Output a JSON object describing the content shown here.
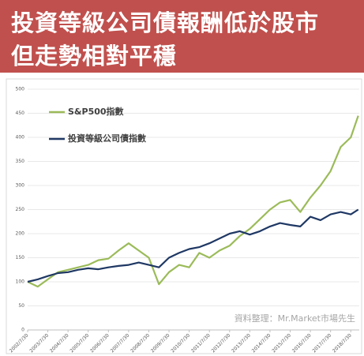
{
  "chart_data": {
    "type": "line",
    "title": [
      "投資等級公司債報酬低於股市",
      "但走勢相對平穩"
    ],
    "annotation": "資料整理：Mr.Market市場先生",
    "x": [
      2002.58,
      2003.08,
      2003.58,
      2004.08,
      2004.58,
      2005.08,
      2005.58,
      2006.08,
      2006.58,
      2007.08,
      2007.58,
      2008.08,
      2008.58,
      2009.08,
      2009.58,
      2010.08,
      2010.58,
      2011.08,
      2011.58,
      2012.08,
      2012.58,
      2013.08,
      2013.58,
      2014.08,
      2014.58,
      2015.08,
      2015.58,
      2016.08,
      2016.58,
      2017.08,
      2017.58,
      2018.08,
      2018.58,
      2018.95
    ],
    "series": [
      {
        "name": "S&P500指數",
        "color": "#9bbb59",
        "values": [
          100,
          90,
          105,
          120,
          125,
          130,
          135,
          145,
          148,
          165,
          180,
          165,
          150,
          95,
          120,
          135,
          130,
          160,
          150,
          165,
          175,
          195,
          210,
          230,
          250,
          265,
          270,
          245,
          275,
          300,
          330,
          380,
          400,
          445
        ]
      },
      {
        "name": "投資等級公司債指數",
        "color": "#1f3864",
        "values": [
          100,
          105,
          112,
          118,
          120,
          125,
          128,
          126,
          130,
          133,
          135,
          140,
          135,
          130,
          150,
          160,
          168,
          172,
          180,
          190,
          200,
          205,
          198,
          205,
          215,
          222,
          218,
          215,
          235,
          228,
          240,
          245,
          240,
          250
        ]
      }
    ],
    "xlim": [
      2002.58,
      2019.0
    ],
    "xticks": [
      {
        "value": 2002.58,
        "label": "2002/7/30"
      },
      {
        "value": 2003.58,
        "label": "2003/7/30"
      },
      {
        "value": 2004.58,
        "label": "2004/7/30"
      },
      {
        "value": 2005.58,
        "label": "2005/7/30"
      },
      {
        "value": 2006.58,
        "label": "2006/7/30"
      },
      {
        "value": 2007.58,
        "label": "2007/7/30"
      },
      {
        "value": 2008.58,
        "label": "2008/7/30"
      },
      {
        "value": 2009.58,
        "label": "2009/7/30"
      },
      {
        "value": 2010.58,
        "label": "2010/7/30"
      },
      {
        "value": 2011.58,
        "label": "2011/7/30"
      },
      {
        "value": 2012.58,
        "label": "2012/7/30"
      },
      {
        "value": 2013.58,
        "label": "2013/7/30"
      },
      {
        "value": 2014.58,
        "label": "2014/7/30"
      },
      {
        "value": 2015.58,
        "label": "2015/7/30"
      },
      {
        "value": 2016.58,
        "label": "2016/7/30"
      },
      {
        "value": 2017.58,
        "label": "2017/7/30"
      },
      {
        "value": 2018.58,
        "label": "2018/7/30"
      }
    ],
    "ylim": [
      0,
      500
    ],
    "yticks": [
      0,
      50,
      100,
      150,
      200,
      250,
      300,
      350,
      400,
      450,
      500
    ],
    "grid": true
  }
}
